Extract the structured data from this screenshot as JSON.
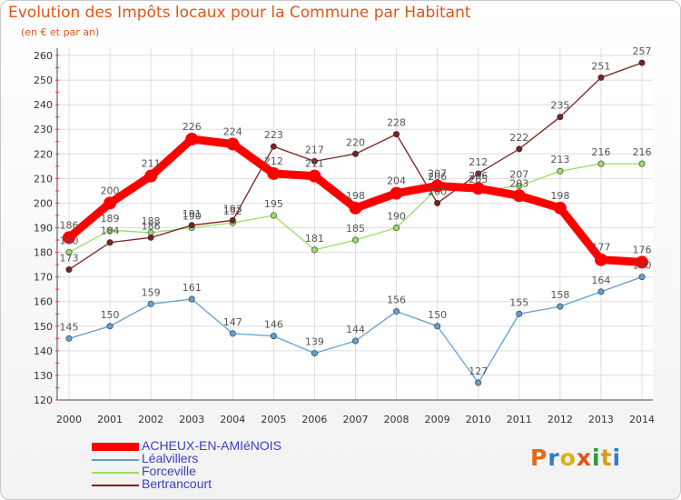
{
  "header": {
    "title": "Evolution des Impôts locaux pour la Commune par Habitant",
    "subtitle": "(en € et par an)"
  },
  "logo": {
    "text": "Proxiti",
    "colors": [
      "#e06a18",
      "#2a7fd0",
      "#e0b010",
      "#e05515",
      "#2a9a3a",
      "#d0a010",
      "#2a7fd0"
    ]
  },
  "chart_data": {
    "type": "line",
    "title": "Evolution des Impôts locaux pour la Commune par Habitant",
    "subtitle": "(en € et par an)",
    "x": [
      "2000",
      "2001",
      "2002",
      "2003",
      "2004",
      "2005",
      "2006",
      "2007",
      "2008",
      "2009",
      "2010",
      "2011",
      "2012",
      "2013",
      "2014"
    ],
    "ylim": [
      120,
      260
    ],
    "yticks": [
      120,
      130,
      140,
      150,
      160,
      170,
      180,
      190,
      200,
      210,
      220,
      230,
      240,
      250,
      260
    ],
    "grid": true,
    "legend_position": "bottom-left",
    "series": [
      {
        "name": "ACHEUX-EN-AMIéNOIS",
        "color": "#ff0000",
        "values": [
          186,
          200,
          211,
          226,
          224,
          212,
          211,
          198,
          204,
          207,
          206,
          203,
          198,
          177,
          176
        ]
      },
      {
        "name": "Léalvillers",
        "color": "#5f9fd3",
        "values": [
          145,
          150,
          159,
          161,
          147,
          146,
          139,
          144,
          156,
          150,
          127,
          155,
          158,
          164,
          170
        ]
      },
      {
        "name": "Forceville",
        "color": "#99dd66",
        "values": [
          180,
          189,
          188,
          190,
          192,
          195,
          181,
          185,
          190,
          206,
          205,
          207,
          213,
          216,
          216
        ]
      },
      {
        "name": "Bertrancourt",
        "color": "#7a2020",
        "values": [
          173,
          184,
          186,
          191,
          193,
          223,
          217,
          220,
          228,
          200,
          212,
          222,
          235,
          251,
          257
        ]
      }
    ]
  }
}
